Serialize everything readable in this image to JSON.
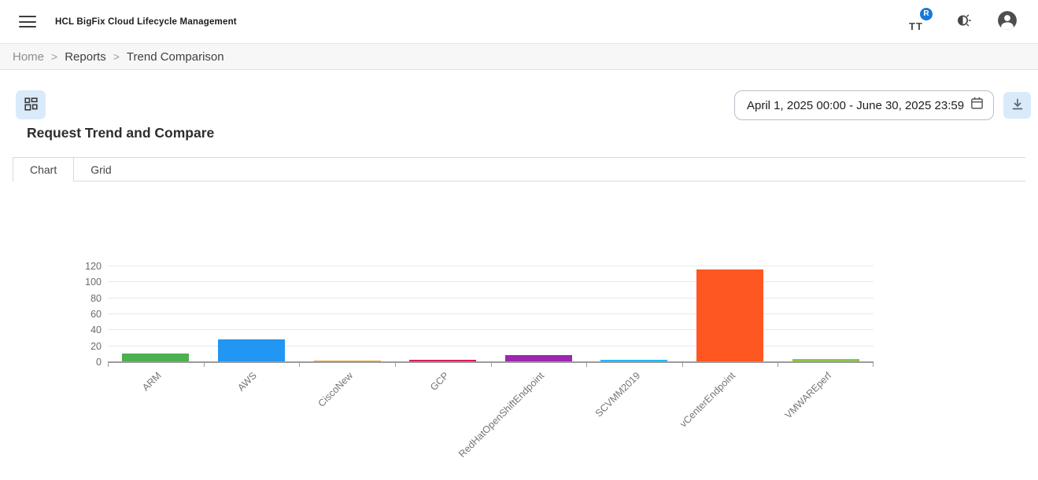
{
  "header": {
    "app_title": "HCL BigFix Cloud Lifecycle Management",
    "text_icon_label": "TT",
    "notification_badge": "R"
  },
  "breadcrumb": {
    "separator": ">",
    "items": [
      {
        "label": "Home"
      },
      {
        "label": "Reports"
      },
      {
        "label": "Trend Comparison"
      }
    ]
  },
  "toolbar": {
    "date_range_value": "April 1, 2025 00:00 - June 30, 2025 23:59"
  },
  "page": {
    "title": "Request Trend and Compare"
  },
  "tabs": [
    {
      "label": "Chart",
      "active": true
    },
    {
      "label": "Grid",
      "active": false
    }
  ],
  "chart_data": {
    "type": "bar",
    "title": "",
    "xlabel": "",
    "ylabel": "",
    "categories": [
      "ARM",
      "AWS",
      "CiscoNew",
      "GCP",
      "RedHatOpenShiftEndpoint",
      "SCVMM2019",
      "vCenterEndpoint",
      "VMWAREperf"
    ],
    "values": [
      10,
      28,
      1,
      2,
      8,
      2,
      115,
      3
    ],
    "colors": [
      "#4CAF50",
      "#2196F3",
      "#E8A33C",
      "#D81B60",
      "#9C27B0",
      "#29B6F6",
      "#FF5722",
      "#8BC34A"
    ],
    "ylim": [
      0,
      120
    ],
    "yticks": [
      0,
      20,
      40,
      60,
      80,
      100,
      120
    ],
    "grid": true,
    "legend": "none",
    "x_label_rotation": -45
  }
}
